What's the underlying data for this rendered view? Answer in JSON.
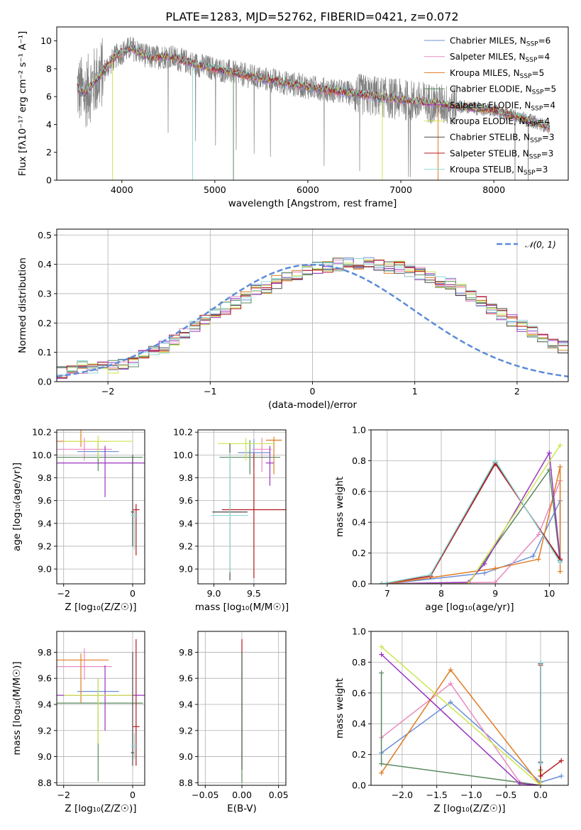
{
  "title": "PLATE=1283, MJD=52762, FIBERID=0421, z=0.072",
  "colors": {
    "Chabrier MILES": "#6b8fd6",
    "Salpeter MILES": "#e98ac0",
    "Kroupa MILES": "#e07c22",
    "Chabrier ELODIE": "#5a8a5f",
    "Salpeter ELODIE": "#9a33bf",
    "Kroupa ELODIE": "#cde64f",
    "Chabrier STELIB": "#4a4a4a",
    "Salpeter STELIB": "#b3181d",
    "Kroupa STELIB": "#8ed9d6",
    "data": "#808080",
    "normal": "#5b8bd8"
  },
  "legend": [
    {
      "key": "Chabrier MILES",
      "label": "Chabrier MILES, N",
      "nssp": "6"
    },
    {
      "key": "Salpeter MILES",
      "label": "Salpeter MILES, N",
      "nssp": "4"
    },
    {
      "key": "Kroupa MILES",
      "label": "Kroupa MILES, N",
      "nssp": "5"
    },
    {
      "key": "Chabrier ELODIE",
      "label": "Chabrier ELODIE, N",
      "nssp": "5"
    },
    {
      "key": "Salpeter ELODIE",
      "label": "Salpeter ELODIE, N",
      "nssp": "4"
    },
    {
      "key": "Kroupa ELODIE",
      "label": "Kroupa ELODIE, N",
      "nssp": "4"
    },
    {
      "key": "Chabrier STELIB",
      "label": "Chabrier STELIB, N",
      "nssp": "3"
    },
    {
      "key": "Salpeter STELIB",
      "label": "Salpeter STELIB, N",
      "nssp": "3"
    },
    {
      "key": "Kroupa STELIB",
      "label": "Kroupa STELIB, N",
      "nssp": "3"
    }
  ],
  "legend_sub": "SSP",
  "legend_normal": "𝒩(0, 1)",
  "chart_data": [
    {
      "id": "spectrum",
      "type": "line",
      "xlabel": "wavelength [Angstrom, rest frame]",
      "ylabel": "Flux [fλ10⁻¹⁷ erg cm⁻² s⁻¹ A⁻¹]",
      "xlim": [
        3300,
        8800
      ],
      "ylim": [
        0,
        11
      ],
      "xticks": [
        4000,
        5000,
        6000,
        7000,
        8000
      ],
      "yticks": [
        0,
        2,
        4,
        6,
        8,
        10
      ],
      "grid": false,
      "legend_position": "top-right",
      "data_range": [
        3520,
        8600
      ],
      "continuum": [
        [
          3520,
          6.6
        ],
        [
          3600,
          6.2
        ],
        [
          3800,
          7.8
        ],
        [
          3950,
          9.0
        ],
        [
          4100,
          9.5
        ],
        [
          4300,
          8.8
        ],
        [
          4500,
          8.9
        ],
        [
          4800,
          8.3
        ],
        [
          5000,
          8.0
        ],
        [
          5500,
          7.3
        ],
        [
          6000,
          6.7
        ],
        [
          6500,
          6.2
        ],
        [
          7000,
          5.8
        ],
        [
          7500,
          5.4
        ],
        [
          8000,
          5.0
        ],
        [
          8300,
          4.5
        ],
        [
          8600,
          3.8
        ]
      ]
    },
    {
      "id": "residuals",
      "type": "histogram",
      "xlabel": "(data-model)/error",
      "ylabel": "Normed distribution",
      "xlim": [
        -2.5,
        2.5
      ],
      "ylim": [
        0,
        0.52
      ],
      "xticks": [
        -2,
        -1,
        0,
        1,
        2
      ],
      "yticks": [
        0.0,
        0.1,
        0.2,
        0.3,
        0.4,
        0.5
      ],
      "grid": true,
      "legend_position": "top-right",
      "bin_width": 0.1,
      "profile": [
        0.03,
        0.04,
        0.05,
        0.04,
        0.05,
        0.05,
        0.06,
        0.07,
        0.09,
        0.1,
        0.12,
        0.14,
        0.16,
        0.19,
        0.21,
        0.23,
        0.25,
        0.27,
        0.29,
        0.31,
        0.32,
        0.34,
        0.36,
        0.37,
        0.38,
        0.39,
        0.39,
        0.4,
        0.4,
        0.4,
        0.41,
        0.4,
        0.39,
        0.39,
        0.38,
        0.37,
        0.36,
        0.34,
        0.33,
        0.31,
        0.29,
        0.27,
        0.25,
        0.23,
        0.21,
        0.19,
        0.17,
        0.15,
        0.13,
        0.12,
        0.1,
        0.09,
        0.08,
        0.07,
        0.06,
        0.05,
        0.05,
        0.04,
        0.03,
        0.03
      ]
    },
    {
      "id": "Z_age",
      "type": "errorbar",
      "xlabel": "Z [log₁₀(Z/Z☉)]",
      "ylabel": "age  [log₁₀(age/yr)]",
      "xlim": [
        -2.2,
        0.35
      ],
      "ylim": [
        8.87,
        10.22
      ],
      "xticks": [
        -2,
        0
      ],
      "yticks": [
        9.0,
        9.2,
        9.4,
        9.6,
        9.8,
        10.0,
        10.2
      ],
      "grid": true,
      "points": [
        {
          "model": "Chabrier MILES",
          "x": -1.0,
          "xerr": 0.6,
          "y": 10.03,
          "yerr": [
            0.08,
            0.08
          ]
        },
        {
          "model": "Salpeter MILES",
          "x": -1.4,
          "xerr": 0.8,
          "y": 10.05,
          "yerr": [
            0.1,
            0.1
          ]
        },
        {
          "model": "Kroupa MILES",
          "x": -1.5,
          "xerr": 0.8,
          "y": 10.12,
          "yerr": [
            0.05,
            0.2
          ]
        },
        {
          "model": "Chabrier ELODIE",
          "x": -1.0,
          "xerr": 1.3,
          "y": 9.98,
          "yerr": [
            0.12,
            0.12
          ]
        },
        {
          "model": "Salpeter ELODIE",
          "x": -0.8,
          "xerr": 1.4,
          "y": 9.93,
          "yerr": [
            0.3,
            0.15
          ]
        },
        {
          "model": "Kroupa ELODIE",
          "x": -1.0,
          "xerr": 1.0,
          "y": 10.12,
          "yerr": [
            0.15,
            0.05
          ]
        },
        {
          "model": "Chabrier STELIB",
          "x": 0.0,
          "xerr": 0.05,
          "y": 9.5,
          "yerr": [
            0.3,
            0.5
          ]
        },
        {
          "model": "Salpeter STELIB",
          "x": 0.1,
          "xerr": 0.1,
          "y": 9.52,
          "yerr": [
            0.4,
            0.05
          ]
        },
        {
          "model": "Kroupa STELIB",
          "x": 0.05,
          "xerr": 0.1,
          "y": 9.47,
          "yerr": [
            0.3,
            0.05
          ]
        }
      ]
    },
    {
      "id": "mass_age",
      "type": "errorbar",
      "xlabel": "mass [log₁₀(M/M☉)]",
      "ylabel": "",
      "xlim": [
        8.8,
        9.9
      ],
      "ylim": [
        8.87,
        10.22
      ],
      "xticks": [
        9.0,
        9.5
      ],
      "yticks": [
        9.0,
        9.2,
        9.4,
        9.6,
        9.8,
        10.0,
        10.2
      ],
      "grid": true,
      "points": [
        {
          "model": "Chabrier MILES",
          "x": 9.5,
          "xerr": 0.2,
          "y": 10.02,
          "yerr": [
            0.12,
            0.12
          ]
        },
        {
          "model": "Salpeter MILES",
          "x": 9.6,
          "xerr": 0.12,
          "y": 10.05,
          "yerr": [
            0.2,
            0.1
          ]
        },
        {
          "model": "Kroupa MILES",
          "x": 9.75,
          "xerr": 0.1,
          "y": 10.13,
          "yerr": [
            0.3,
            0.03
          ]
        },
        {
          "model": "Chabrier ELODIE",
          "x": 9.45,
          "xerr": 0.38,
          "y": 9.98,
          "yerr": [
            0.15,
            0.15
          ]
        },
        {
          "model": "Salpeter ELODIE",
          "x": 9.7,
          "xerr": 0.05,
          "y": 9.93,
          "yerr": [
            0.2,
            0.15
          ]
        },
        {
          "model": "Kroupa ELODIE",
          "x": 9.4,
          "xerr": 0.35,
          "y": 10.1,
          "yerr": [
            0.15,
            0.05
          ]
        },
        {
          "model": "Chabrier STELIB",
          "x": 9.2,
          "xerr": 0.22,
          "y": 9.5,
          "yerr": [
            0.6,
            0.6
          ]
        },
        {
          "model": "Salpeter STELIB",
          "x": 9.5,
          "xerr": 0.4,
          "y": 9.52,
          "yerr": [
            0.6,
            0.5
          ]
        },
        {
          "model": "Kroupa STELIB",
          "x": 9.2,
          "xerr": 0.23,
          "y": 9.47,
          "yerr": [
            0.5,
            0.55
          ]
        }
      ]
    },
    {
      "id": "age_weight",
      "type": "line",
      "xlabel": "age  [log₁₀(age/yr)]",
      "ylabel": "mass weight",
      "xlim": [
        6.7,
        10.35
      ],
      "ylim": [
        0,
        1
      ],
      "xticks": [
        7,
        8,
        9,
        10
      ],
      "yticks": [
        0.0,
        0.2,
        0.4,
        0.6,
        0.8,
        1.0
      ],
      "grid": true,
      "series": [
        {
          "model": "Chabrier MILES",
          "x": [
            7.0,
            8.8,
            9.7,
            10.2,
            10.2
          ],
          "y": [
            0.0,
            0.07,
            0.18,
            0.54,
            0.15
          ]
        },
        {
          "model": "Salpeter MILES",
          "x": [
            7.0,
            9.0,
            9.8,
            10.2
          ],
          "y": [
            0.0,
            0.01,
            0.32,
            0.67
          ]
        },
        {
          "model": "Kroupa MILES",
          "x": [
            7.0,
            9.0,
            9.8,
            10.2,
            10.2
          ],
          "y": [
            0.0,
            0.1,
            0.16,
            0.76,
            0.08
          ]
        },
        {
          "model": "Chabrier ELODIE",
          "x": [
            6.9,
            8.5,
            10.0,
            10.2
          ],
          "y": [
            0.0,
            0.0,
            0.74,
            0.14
          ]
        },
        {
          "model": "Salpeter ELODIE",
          "x": [
            6.9,
            8.5,
            8.8,
            10.0,
            10.2
          ],
          "y": [
            0.0,
            0.01,
            0.13,
            0.85,
            0.16
          ]
        },
        {
          "model": "Kroupa ELODIE",
          "x": [
            6.9,
            8.5,
            10.2
          ],
          "y": [
            0.0,
            0.0,
            0.9
          ]
        },
        {
          "model": "Chabrier STELIB",
          "x": [
            6.9,
            7.8,
            9.0,
            10.2
          ],
          "y": [
            0.0,
            0.05,
            0.79,
            0.15
          ]
        },
        {
          "model": "Salpeter STELIB",
          "x": [
            6.9,
            7.8,
            9.0,
            10.2
          ],
          "y": [
            0.0,
            0.05,
            0.78,
            0.16
          ]
        },
        {
          "model": "Kroupa STELIB",
          "x": [
            6.9,
            7.8,
            9.0,
            10.2
          ],
          "y": [
            0.0,
            0.06,
            0.8,
            0.14
          ]
        }
      ]
    },
    {
      "id": "Z_mass",
      "type": "errorbar",
      "xlabel": "Z [log₁₀(Z/Z☉)]",
      "ylabel": "mass [log₁₀(M/M☉)]",
      "xlim": [
        -2.2,
        0.35
      ],
      "ylim": [
        8.78,
        9.96
      ],
      "xticks": [
        -2,
        0
      ],
      "yticks": [
        8.8,
        9.0,
        9.2,
        9.4,
        9.6,
        9.8
      ],
      "grid": true,
      "points": [
        {
          "model": "Chabrier MILES",
          "x": -1.0,
          "xerr": 0.6,
          "y": 9.5,
          "yerr": [
            0.1,
            0.1
          ]
        },
        {
          "model": "Salpeter MILES",
          "x": -1.4,
          "xerr": 0.8,
          "y": 9.69,
          "yerr": [
            0.1,
            0.14
          ]
        },
        {
          "model": "Kroupa MILES",
          "x": -1.5,
          "xerr": 0.8,
          "y": 9.74,
          "yerr": [
            0.33,
            0.05
          ]
        },
        {
          "model": "Chabrier ELODIE",
          "x": -1.0,
          "xerr": 1.3,
          "y": 9.41,
          "yerr": [
            0.6,
            0.1
          ]
        },
        {
          "model": "Salpeter ELODIE",
          "x": -0.8,
          "xerr": 1.4,
          "y": 9.47,
          "yerr": [
            0.27,
            0.23
          ]
        },
        {
          "model": "Kroupa ELODIE",
          "x": -1.0,
          "xerr": 1.0,
          "y": 9.47,
          "yerr": [
            0.37,
            0.13
          ]
        },
        {
          "model": "Chabrier STELIB",
          "x": 0.0,
          "xerr": 0.05,
          "y": 9.03,
          "yerr": [
            0.1,
            0.77
          ]
        },
        {
          "model": "Salpeter STELIB",
          "x": 0.1,
          "xerr": 0.1,
          "y": 9.23,
          "yerr": [
            0.3,
            0.67
          ]
        },
        {
          "model": "Kroupa STELIB",
          "x": 0.05,
          "xerr": 0.1,
          "y": 9.08,
          "yerr": [
            0.1,
            0.1
          ]
        }
      ]
    },
    {
      "id": "EBV_mass",
      "type": "errorbar",
      "xlabel": "E(B-V)",
      "ylabel": "",
      "xlim": [
        -0.06,
        0.06
      ],
      "ylim": [
        8.78,
        9.96
      ],
      "xticks": [
        -0.05,
        0.0,
        0.05
      ],
      "tick_labels": [
        "−0.05",
        "0.00",
        "0.05"
      ],
      "yticks": [
        8.8,
        9.0,
        9.2,
        9.4,
        9.6,
        9.8
      ],
      "grid": true,
      "points": [
        {
          "model": "Chabrier MILES",
          "x": 0.0,
          "xerr": 0.0,
          "y": 9.5,
          "yerr": [
            0.6,
            0.3
          ]
        },
        {
          "model": "Salpeter ELODIE",
          "x": 0.0,
          "xerr": 0.0,
          "y": 9.5,
          "yerr": [
            0.6,
            0.3
          ]
        },
        {
          "model": "Salpeter STELIB",
          "x": 0.0,
          "xerr": 0.0,
          "y": 9.5,
          "yerr": [
            0.6,
            0.4
          ]
        },
        {
          "model": "Chabrier ELODIE",
          "x": 0.0,
          "xerr": 0.0,
          "y": 9.5,
          "yerr": [
            0.7,
            0.3
          ]
        }
      ]
    },
    {
      "id": "Z_weight",
      "type": "line",
      "xlabel": "Z [log₁₀(Z/Z☉)]",
      "ylabel": "mass weight",
      "xlim": [
        -2.45,
        0.4
      ],
      "ylim": [
        0,
        1
      ],
      "xticks": [
        -2.0,
        -1.5,
        -1.0,
        -0.5,
        0.0
      ],
      "yticks": [
        0.0,
        0.2,
        0.4,
        0.6,
        0.8,
        1.0
      ],
      "grid": true,
      "series": [
        {
          "model": "Chabrier MILES",
          "x": [
            -2.3,
            -1.3,
            0.0,
            0.3
          ],
          "y": [
            0.21,
            0.54,
            0.02,
            0.06
          ]
        },
        {
          "model": "Salpeter MILES",
          "x": [
            -2.3,
            -1.3,
            -0.3,
            0.0
          ],
          "y": [
            0.31,
            0.66,
            0.02,
            0.0
          ]
        },
        {
          "model": "Kroupa MILES",
          "x": [
            -2.3,
            -1.3,
            0.0
          ],
          "y": [
            0.08,
            0.75,
            0.0
          ]
        },
        {
          "model": "Chabrier ELODIE",
          "x": [
            -2.3,
            -2.3,
            0.0,
            0.0
          ],
          "y": [
            0.73,
            0.14,
            0.0,
            0.1
          ]
        },
        {
          "model": "Salpeter ELODIE",
          "x": [
            -2.3,
            -0.3,
            0.0,
            0.0
          ],
          "y": [
            0.85,
            0.01,
            0.0,
            0.15
          ]
        },
        {
          "model": "Kroupa ELODIE",
          "x": [
            -2.3,
            0.0,
            0.0
          ],
          "y": [
            0.9,
            0.0,
            0.09
          ]
        },
        {
          "model": "Chabrier STELIB",
          "x": [
            0.0,
            0.0
          ],
          "y": [
            0.79,
            0.15
          ]
        },
        {
          "model": "Salpeter STELIB",
          "x": [
            0.0,
            0.0,
            0.3
          ],
          "y": [
            0.78,
            0.06,
            0.16
          ]
        },
        {
          "model": "Kroupa STELIB",
          "x": [
            0.0,
            0.0
          ],
          "y": [
            0.8,
            0.14
          ]
        }
      ]
    }
  ]
}
